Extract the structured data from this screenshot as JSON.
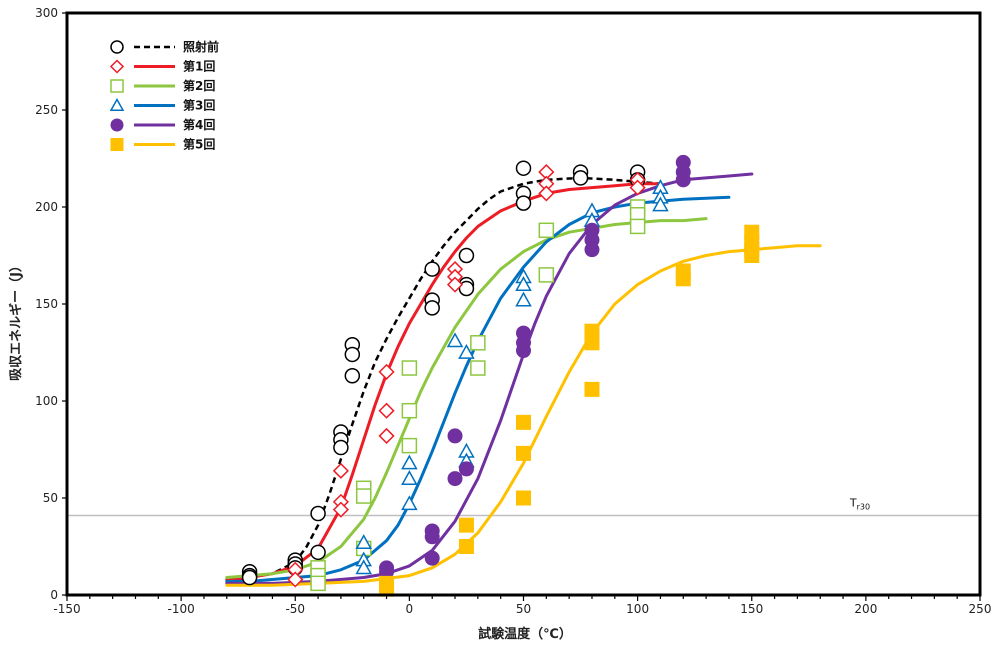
{
  "chart_data": {
    "type": "scatter",
    "title": "",
    "xlabel": "試験温度（℃）",
    "ylabel": "吸収エネルギー（J）",
    "xlim": [
      -150,
      250
    ],
    "ylim": [
      0,
      300
    ],
    "x_ticks": [
      -150,
      -100,
      -50,
      0,
      50,
      100,
      150,
      200,
      250
    ],
    "y_ticks": [
      0,
      50,
      100,
      150,
      200,
      250,
      300
    ],
    "grid": false,
    "legend_position": "top-left",
    "reference_line": {
      "y": 41,
      "label": "T",
      "label_sub": "r30",
      "color": "#bfbfbf"
    },
    "series": [
      {
        "name": "照射前",
        "marker": "circle-open",
        "color": "#000000",
        "line_style": "dashed",
        "points": [
          [
            -70,
            12
          ],
          [
            -70,
            10
          ],
          [
            -70,
            9
          ],
          [
            -50,
            18
          ],
          [
            -50,
            16
          ],
          [
            -50,
            14
          ],
          [
            -40,
            42
          ],
          [
            -40,
            22
          ],
          [
            -30,
            84
          ],
          [
            -30,
            80
          ],
          [
            -30,
            76
          ],
          [
            -25,
            129
          ],
          [
            -25,
            124
          ],
          [
            -25,
            113
          ],
          [
            10,
            168
          ],
          [
            10,
            152
          ],
          [
            10,
            148
          ],
          [
            25,
            175
          ],
          [
            25,
            160
          ],
          [
            25,
            158
          ],
          [
            50,
            220
          ],
          [
            50,
            207
          ],
          [
            50,
            202
          ],
          [
            75,
            218
          ],
          [
            75,
            215
          ],
          [
            100,
            218
          ],
          [
            100,
            214
          ]
        ],
        "curve": [
          [
            -80,
            7
          ],
          [
            -70,
            9
          ],
          [
            -60,
            11
          ],
          [
            -50,
            17
          ],
          [
            -45,
            25
          ],
          [
            -40,
            36
          ],
          [
            -35,
            52
          ],
          [
            -30,
            70
          ],
          [
            -25,
            88
          ],
          [
            -20,
            105
          ],
          [
            -15,
            120
          ],
          [
            -10,
            132
          ],
          [
            -5,
            143
          ],
          [
            0,
            153
          ],
          [
            5,
            163
          ],
          [
            10,
            172
          ],
          [
            15,
            180
          ],
          [
            20,
            187
          ],
          [
            25,
            193
          ],
          [
            30,
            199
          ],
          [
            35,
            204
          ],
          [
            40,
            208
          ],
          [
            50,
            212
          ],
          [
            60,
            214
          ],
          [
            75,
            215
          ],
          [
            90,
            214
          ],
          [
            100,
            213
          ],
          [
            110,
            212
          ]
        ]
      },
      {
        "name": "第1回",
        "marker": "diamond-open",
        "color": "#ee1c25",
        "line_style": "solid",
        "points": [
          [
            -50,
            13
          ],
          [
            -50,
            8
          ],
          [
            -30,
            64
          ],
          [
            -30,
            48
          ],
          [
            -30,
            44
          ],
          [
            -10,
            115
          ],
          [
            -10,
            95
          ],
          [
            -10,
            82
          ],
          [
            20,
            168
          ],
          [
            20,
            164
          ],
          [
            20,
            160
          ],
          [
            60,
            218
          ],
          [
            60,
            212
          ],
          [
            60,
            207
          ],
          [
            100,
            214
          ],
          [
            100,
            210
          ]
        ],
        "curve": [
          [
            -80,
            8
          ],
          [
            -70,
            9
          ],
          [
            -60,
            11
          ],
          [
            -50,
            15
          ],
          [
            -40,
            24
          ],
          [
            -30,
            45
          ],
          [
            -25,
            62
          ],
          [
            -20,
            80
          ],
          [
            -15,
            98
          ],
          [
            -10,
            114
          ],
          [
            -5,
            128
          ],
          [
            0,
            140
          ],
          [
            5,
            150
          ],
          [
            10,
            160
          ],
          [
            15,
            169
          ],
          [
            20,
            177
          ],
          [
            25,
            184
          ],
          [
            30,
            190
          ],
          [
            40,
            198
          ],
          [
            50,
            203
          ],
          [
            60,
            207
          ],
          [
            70,
            209
          ],
          [
            80,
            210
          ],
          [
            90,
            211
          ],
          [
            100,
            212
          ],
          [
            110,
            212
          ]
        ]
      },
      {
        "name": "第2回",
        "marker": "square-open",
        "color": "#8dc63f",
        "line_style": "solid",
        "points": [
          [
            -40,
            14
          ],
          [
            -40,
            10
          ],
          [
            -40,
            6
          ],
          [
            -20,
            55
          ],
          [
            -20,
            51
          ],
          [
            -20,
            24
          ],
          [
            0,
            117
          ],
          [
            0,
            95
          ],
          [
            0,
            77
          ],
          [
            30,
            130
          ],
          [
            30,
            117
          ],
          [
            60,
            188
          ],
          [
            60,
            165
          ],
          [
            100,
            200
          ],
          [
            100,
            196
          ],
          [
            100,
            190
          ]
        ],
        "curve": [
          [
            -80,
            9
          ],
          [
            -70,
            10
          ],
          [
            -60,
            11
          ],
          [
            -50,
            13
          ],
          [
            -40,
            17
          ],
          [
            -30,
            25
          ],
          [
            -20,
            39
          ],
          [
            -15,
            50
          ],
          [
            -10,
            63
          ],
          [
            -5,
            77
          ],
          [
            0,
            91
          ],
          [
            5,
            105
          ],
          [
            10,
            117
          ],
          [
            20,
            138
          ],
          [
            30,
            155
          ],
          [
            40,
            168
          ],
          [
            50,
            177
          ],
          [
            60,
            183
          ],
          [
            70,
            187
          ],
          [
            80,
            189
          ],
          [
            90,
            191
          ],
          [
            100,
            192
          ],
          [
            110,
            193
          ],
          [
            120,
            193
          ],
          [
            130,
            194
          ]
        ]
      },
      {
        "name": "第3回",
        "marker": "triangle-open",
        "color": "#0070c0",
        "line_style": "solid",
        "points": [
          [
            -20,
            27
          ],
          [
            -20,
            18
          ],
          [
            -20,
            14
          ],
          [
            0,
            68
          ],
          [
            0,
            60
          ],
          [
            0,
            47
          ],
          [
            20,
            131
          ],
          [
            25,
            125
          ],
          [
            25,
            74
          ],
          [
            25,
            69
          ],
          [
            50,
            164
          ],
          [
            50,
            160
          ],
          [
            50,
            152
          ],
          [
            80,
            198
          ],
          [
            80,
            193
          ],
          [
            110,
            210
          ],
          [
            110,
            205
          ],
          [
            110,
            201
          ]
        ],
        "curve": [
          [
            -80,
            7
          ],
          [
            -70,
            7
          ],
          [
            -60,
            8
          ],
          [
            -50,
            9
          ],
          [
            -40,
            10
          ],
          [
            -30,
            13
          ],
          [
            -20,
            18
          ],
          [
            -10,
            28
          ],
          [
            -5,
            36
          ],
          [
            0,
            47
          ],
          [
            5,
            60
          ],
          [
            10,
            74
          ],
          [
            15,
            89
          ],
          [
            20,
            104
          ],
          [
            25,
            118
          ],
          [
            30,
            131
          ],
          [
            40,
            153
          ],
          [
            50,
            169
          ],
          [
            60,
            182
          ],
          [
            70,
            191
          ],
          [
            80,
            197
          ],
          [
            90,
            200
          ],
          [
            100,
            202
          ],
          [
            120,
            204
          ],
          [
            140,
            205
          ]
        ]
      },
      {
        "name": "第4回",
        "marker": "circle-filled",
        "color": "#7030a0",
        "line_style": "solid",
        "points": [
          [
            -10,
            14
          ],
          [
            -10,
            12
          ],
          [
            10,
            33
          ],
          [
            10,
            30
          ],
          [
            10,
            19
          ],
          [
            20,
            82
          ],
          [
            20,
            60
          ],
          [
            25,
            65
          ],
          [
            50,
            135
          ],
          [
            50,
            130
          ],
          [
            50,
            126
          ],
          [
            80,
            188
          ],
          [
            80,
            183
          ],
          [
            80,
            178
          ],
          [
            120,
            223
          ],
          [
            120,
            218
          ],
          [
            120,
            214
          ]
        ],
        "curve": [
          [
            -80,
            6
          ],
          [
            -60,
            6
          ],
          [
            -40,
            7
          ],
          [
            -20,
            9
          ],
          [
            -10,
            11
          ],
          [
            0,
            15
          ],
          [
            10,
            23
          ],
          [
            20,
            38
          ],
          [
            30,
            60
          ],
          [
            40,
            90
          ],
          [
            45,
            107
          ],
          [
            50,
            124
          ],
          [
            55,
            140
          ],
          [
            60,
            154
          ],
          [
            70,
            176
          ],
          [
            80,
            191
          ],
          [
            90,
            201
          ],
          [
            100,
            207
          ],
          [
            110,
            211
          ],
          [
            120,
            214
          ],
          [
            130,
            215
          ],
          [
            140,
            216
          ],
          [
            150,
            217
          ]
        ]
      },
      {
        "name": "第5回",
        "marker": "square-filled",
        "color": "#ffc000",
        "line_style": "solid",
        "points": [
          [
            -10,
            6
          ],
          [
            -10,
            3
          ],
          [
            25,
            36
          ],
          [
            25,
            25
          ],
          [
            50,
            89
          ],
          [
            50,
            73
          ],
          [
            50,
            50
          ],
          [
            80,
            136
          ],
          [
            80,
            130
          ],
          [
            80,
            106
          ],
          [
            120,
            167
          ],
          [
            120,
            163
          ],
          [
            150,
            187
          ],
          [
            150,
            182
          ],
          [
            150,
            178
          ],
          [
            150,
            175
          ]
        ],
        "curve": [
          [
            -80,
            5
          ],
          [
            -60,
            5
          ],
          [
            -40,
            6
          ],
          [
            -20,
            7
          ],
          [
            0,
            10
          ],
          [
            10,
            14
          ],
          [
            20,
            21
          ],
          [
            30,
            32
          ],
          [
            40,
            48
          ],
          [
            50,
            68
          ],
          [
            60,
            92
          ],
          [
            70,
            115
          ],
          [
            80,
            135
          ],
          [
            90,
            150
          ],
          [
            100,
            160
          ],
          [
            110,
            167
          ],
          [
            120,
            172
          ],
          [
            130,
            175
          ],
          [
            140,
            177
          ],
          [
            150,
            178
          ],
          [
            160,
            179
          ],
          [
            170,
            180
          ],
          [
            180,
            180
          ]
        ]
      }
    ]
  }
}
